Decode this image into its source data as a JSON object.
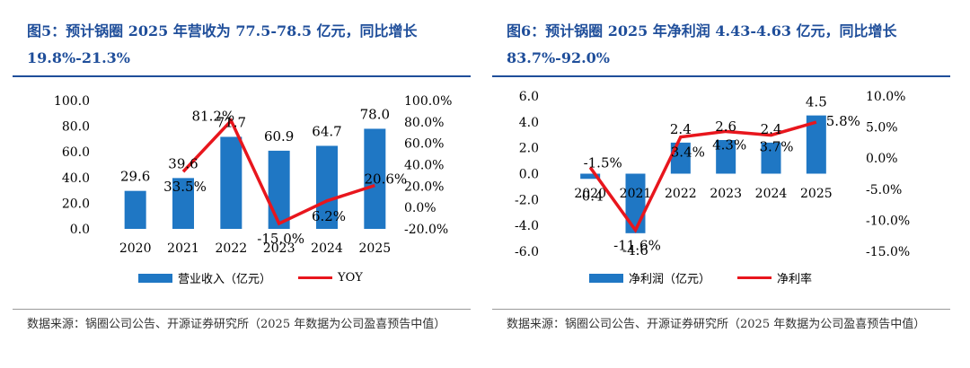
{
  "charts": [
    {
      "title": "图5：预计锅圈 2025 年营收为 77.5-78.5 亿元，同比增长 19.8%-21.3%",
      "source": "数据来源：锅圈公司公告、开源证券研究所（2025 年数据为公司盈喜预告中值）",
      "colors": {
        "bar": "#1f77c4",
        "line": "#e8161d",
        "title": "#1f4e9a"
      }
    },
    {
      "title": "图6：预计锅圈 2025 年净利润 4.43-4.63 亿元，同比增长 83.7%-92.0%",
      "source": "数据来源：锅圈公司公告、开源证券研究所（2025 年数据为公司盈喜预告中值）",
      "colors": {
        "bar": "#1f77c4",
        "line": "#e8161d",
        "title": "#1f4e9a"
      }
    }
  ],
  "chart_data": [
    {
      "type": "bar",
      "categories": [
        "2020",
        "2021",
        "2022",
        "2023",
        "2024",
        "2025"
      ],
      "series": [
        {
          "name": "营业收入（亿元）",
          "type": "bar",
          "axis": "left",
          "values": [
            29.6,
            39.6,
            71.7,
            60.9,
            64.7,
            78.0
          ],
          "labels": [
            "29.6",
            "39.6",
            "71.7",
            "60.9",
            "64.7",
            "78.0"
          ]
        },
        {
          "name": "YOY",
          "type": "line",
          "axis": "right",
          "values": [
            null,
            33.5,
            81.2,
            -15.0,
            6.2,
            20.6
          ],
          "labels": [
            "",
            "33.5%",
            "81.2%",
            "-15.0%",
            "6.2%",
            "20.6%"
          ]
        }
      ],
      "left_axis": {
        "min": 0,
        "max": 100,
        "step": 20,
        "ticks": [
          "0.0",
          "20.0",
          "40.0",
          "60.0",
          "80.0",
          "100.0"
        ]
      },
      "right_axis": {
        "min": -20,
        "max": 100,
        "step": 20,
        "ticks": [
          "-20.0%",
          "0.0%",
          "20.0%",
          "40.0%",
          "60.0%",
          "80.0%",
          "100.0%"
        ]
      },
      "legend": [
        "营业收入（亿元）",
        "YOY"
      ],
      "legend_position": "bottom"
    },
    {
      "type": "bar",
      "categories": [
        "2020",
        "2021",
        "2022",
        "2023",
        "2024",
        "2025"
      ],
      "series": [
        {
          "name": "净利润（亿元）",
          "type": "bar",
          "axis": "left",
          "values": [
            -0.4,
            -4.6,
            2.4,
            2.6,
            2.4,
            4.5
          ],
          "labels": [
            "-0.4",
            "-4.6",
            "2.4",
            "2.6",
            "2.4",
            "4.5"
          ]
        },
        {
          "name": "净利率",
          "type": "line",
          "axis": "right",
          "values": [
            -1.5,
            -11.6,
            3.4,
            4.3,
            3.7,
            5.8
          ],
          "labels": [
            "-1.5%",
            "-11.6%",
            "3.4%",
            "4.3%",
            "3.7%",
            "5.8%"
          ]
        }
      ],
      "left_axis": {
        "min": -6,
        "max": 6,
        "step": 2,
        "ticks": [
          "-6.0",
          "-4.0",
          "-2.0",
          "0.0",
          "2.0",
          "4.0",
          "6.0"
        ]
      },
      "right_axis": {
        "min": -15,
        "max": 10,
        "step": 5,
        "ticks": [
          "-15.0%",
          "-10.0%",
          "-5.0%",
          "0.0%",
          "5.0%",
          "10.0%"
        ]
      },
      "legend": [
        "净利润（亿元）",
        "净利率"
      ],
      "legend_position": "bottom"
    }
  ]
}
